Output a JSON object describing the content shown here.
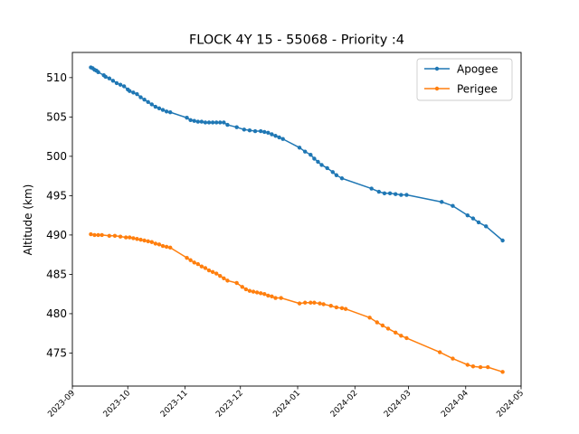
{
  "chart_data": {
    "type": "line",
    "title": "FLOCK 4Y 15 - 55068 - Priority :4",
    "xlabel": "",
    "ylabel": "Altitude (km)",
    "x_type": "date",
    "xlim": [
      "2023-09-01",
      "2024-05-01"
    ],
    "ylim": [
      470.8,
      513.2
    ],
    "x_ticks": [
      "2023-09",
      "2023-10",
      "2023-11",
      "2023-12",
      "2024-01",
      "2024-02",
      "2024-03",
      "2024-04",
      "2024-05"
    ],
    "y_ticks": [
      475,
      480,
      485,
      490,
      495,
      500,
      505,
      510
    ],
    "grid": false,
    "legend_position": "upper right",
    "colors": {
      "Apogee": "#1f77b4",
      "Perigee": "#ff7f0e"
    },
    "series": [
      {
        "name": "Apogee",
        "marker": "circle",
        "points": [
          [
            "2023-09-11",
            511.3
          ],
          [
            "2023-09-12",
            511.2
          ],
          [
            "2023-09-13",
            511.0
          ],
          [
            "2023-09-14",
            510.9
          ],
          [
            "2023-09-15",
            510.7
          ],
          [
            "2023-09-18",
            510.3
          ],
          [
            "2023-09-19",
            510.1
          ],
          [
            "2023-09-21",
            509.9
          ],
          [
            "2023-09-23",
            509.6
          ],
          [
            "2023-09-25",
            509.3
          ],
          [
            "2023-09-27",
            509.1
          ],
          [
            "2023-09-29",
            508.9
          ],
          [
            "2023-10-01",
            508.5
          ],
          [
            "2023-10-02",
            508.3
          ],
          [
            "2023-10-04",
            508.1
          ],
          [
            "2023-10-06",
            507.9
          ],
          [
            "2023-10-08",
            507.5
          ],
          [
            "2023-10-10",
            507.2
          ],
          [
            "2023-10-12",
            506.9
          ],
          [
            "2023-10-14",
            506.6
          ],
          [
            "2023-10-16",
            506.3
          ],
          [
            "2023-10-18",
            506.1
          ],
          [
            "2023-10-20",
            505.9
          ],
          [
            "2023-10-22",
            505.7
          ],
          [
            "2023-10-24",
            505.6
          ],
          [
            "2023-11-02",
            504.9
          ],
          [
            "2023-11-04",
            504.6
          ],
          [
            "2023-11-06",
            504.5
          ],
          [
            "2023-11-08",
            504.4
          ],
          [
            "2023-11-10",
            504.4
          ],
          [
            "2023-11-12",
            504.3
          ],
          [
            "2023-11-14",
            504.3
          ],
          [
            "2023-11-16",
            504.3
          ],
          [
            "2023-11-18",
            504.3
          ],
          [
            "2023-11-20",
            504.3
          ],
          [
            "2023-11-22",
            504.3
          ],
          [
            "2023-11-24",
            504.0
          ],
          [
            "2023-11-29",
            503.7
          ],
          [
            "2023-12-03",
            503.4
          ],
          [
            "2023-12-06",
            503.3
          ],
          [
            "2023-12-09",
            503.2
          ],
          [
            "2023-12-12",
            503.2
          ],
          [
            "2023-12-14",
            503.1
          ],
          [
            "2023-12-16",
            503.0
          ],
          [
            "2023-12-18",
            502.8
          ],
          [
            "2023-12-20",
            502.6
          ],
          [
            "2023-12-22",
            502.4
          ],
          [
            "2023-12-24",
            502.2
          ],
          [
            "2024-01-02",
            501.1
          ],
          [
            "2024-01-05",
            500.6
          ],
          [
            "2024-01-08",
            500.2
          ],
          [
            "2024-01-10",
            499.7
          ],
          [
            "2024-01-12",
            499.3
          ],
          [
            "2024-01-14",
            498.9
          ],
          [
            "2024-01-17",
            498.5
          ],
          [
            "2024-01-20",
            498.0
          ],
          [
            "2024-01-22",
            497.6
          ],
          [
            "2024-01-25",
            497.2
          ],
          [
            "2024-02-10",
            495.9
          ],
          [
            "2024-02-14",
            495.5
          ],
          [
            "2024-02-17",
            495.3
          ],
          [
            "2024-02-20",
            495.3
          ],
          [
            "2024-02-23",
            495.2
          ],
          [
            "2024-02-26",
            495.1
          ],
          [
            "2024-02-29",
            495.1
          ],
          [
            "2024-03-19",
            494.2
          ],
          [
            "2024-03-25",
            493.7
          ],
          [
            "2024-04-02",
            492.5
          ],
          [
            "2024-04-05",
            492.1
          ],
          [
            "2024-04-08",
            491.6
          ],
          [
            "2024-04-12",
            491.1
          ],
          [
            "2024-04-21",
            489.3
          ]
        ]
      },
      {
        "name": "Perigee",
        "marker": "circle",
        "points": [
          [
            "2023-09-11",
            490.1
          ],
          [
            "2023-09-13",
            490.0
          ],
          [
            "2023-09-15",
            490.0
          ],
          [
            "2023-09-17",
            490.0
          ],
          [
            "2023-09-21",
            489.9
          ],
          [
            "2023-09-24",
            489.9
          ],
          [
            "2023-09-27",
            489.8
          ],
          [
            "2023-09-30",
            489.7
          ],
          [
            "2023-10-02",
            489.7
          ],
          [
            "2023-10-04",
            489.6
          ],
          [
            "2023-10-06",
            489.5
          ],
          [
            "2023-10-08",
            489.4
          ],
          [
            "2023-10-10",
            489.3
          ],
          [
            "2023-10-12",
            489.2
          ],
          [
            "2023-10-14",
            489.1
          ],
          [
            "2023-10-16",
            488.9
          ],
          [
            "2023-10-18",
            488.8
          ],
          [
            "2023-10-20",
            488.6
          ],
          [
            "2023-10-22",
            488.5
          ],
          [
            "2023-10-24",
            488.4
          ],
          [
            "2023-11-02",
            487.1
          ],
          [
            "2023-11-04",
            486.8
          ],
          [
            "2023-11-06",
            486.5
          ],
          [
            "2023-11-08",
            486.3
          ],
          [
            "2023-11-10",
            486.0
          ],
          [
            "2023-11-12",
            485.8
          ],
          [
            "2023-11-14",
            485.5
          ],
          [
            "2023-11-16",
            485.3
          ],
          [
            "2023-11-18",
            485.1
          ],
          [
            "2023-11-20",
            484.8
          ],
          [
            "2023-11-22",
            484.5
          ],
          [
            "2023-11-24",
            484.2
          ],
          [
            "2023-11-29",
            483.9
          ],
          [
            "2023-12-02",
            483.4
          ],
          [
            "2023-12-04",
            483.1
          ],
          [
            "2023-12-06",
            482.9
          ],
          [
            "2023-12-08",
            482.8
          ],
          [
            "2023-12-10",
            482.7
          ],
          [
            "2023-12-12",
            482.6
          ],
          [
            "2023-12-14",
            482.5
          ],
          [
            "2023-12-16",
            482.3
          ],
          [
            "2023-12-18",
            482.2
          ],
          [
            "2023-12-20",
            482.0
          ],
          [
            "2023-12-23",
            482.0
          ],
          [
            "2024-01-02",
            481.3
          ],
          [
            "2024-01-05",
            481.4
          ],
          [
            "2024-01-08",
            481.4
          ],
          [
            "2024-01-10",
            481.4
          ],
          [
            "2024-01-13",
            481.3
          ],
          [
            "2024-01-15",
            481.2
          ],
          [
            "2024-01-19",
            481.0
          ],
          [
            "2024-01-22",
            480.8
          ],
          [
            "2024-01-25",
            480.7
          ],
          [
            "2024-01-27",
            480.6
          ],
          [
            "2024-02-09",
            479.5
          ],
          [
            "2024-02-13",
            478.9
          ],
          [
            "2024-02-16",
            478.5
          ],
          [
            "2024-02-19",
            478.1
          ],
          [
            "2024-02-23",
            477.6
          ],
          [
            "2024-02-26",
            477.2
          ],
          [
            "2024-02-29",
            476.9
          ],
          [
            "2024-03-18",
            475.1
          ],
          [
            "2024-03-25",
            474.3
          ],
          [
            "2024-04-02",
            473.5
          ],
          [
            "2024-04-05",
            473.3
          ],
          [
            "2024-04-09",
            473.2
          ],
          [
            "2024-04-13",
            473.2
          ],
          [
            "2024-04-21",
            472.6
          ]
        ]
      }
    ]
  }
}
